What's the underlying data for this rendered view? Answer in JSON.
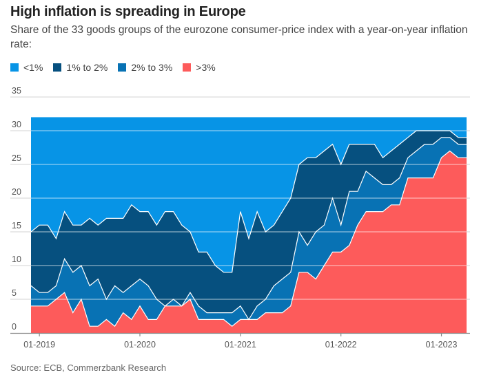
{
  "header": {
    "title": "High inflation is spreading in Europe",
    "subtitle": "Share of the 33 goods groups of the eurozone consumer-price index with a year-on-year inflation rate:"
  },
  "legend": [
    {
      "label": "<1%",
      "color": "#0794e6"
    },
    {
      "label": "1% to 2%",
      "color": "#06507f"
    },
    {
      "label": "2% to 3%",
      "color": "#0872b4"
    },
    {
      "label": ">3%",
      "color": "#fd5b5b"
    }
  ],
  "source": "Source: ECB, Commerzbank Research",
  "chart_data": {
    "type": "area",
    "stacked": true,
    "title": "High inflation is spreading in Europe",
    "subtitle": "Share of the 33 goods groups of the eurozone consumer-price index with a year-on-year inflation rate:",
    "xlabel": "",
    "ylabel": "",
    "x_start": "2018-12",
    "x_end": "2023-04",
    "x_frequency": "monthly",
    "x_ticks": [
      "01-2019",
      "01-2020",
      "01-2021",
      "01-2022",
      "01-2023"
    ],
    "x_tick_index": [
      1,
      13,
      25,
      37,
      49
    ],
    "y_ticks": [
      0,
      5,
      10,
      15,
      20,
      25,
      30,
      35
    ],
    "ylim": [
      0,
      35
    ],
    "grid": true,
    "legend_position": "top-left",
    "series": [
      {
        "name": ">3%",
        "color": "#fd5b5b",
        "values": [
          4,
          4,
          4,
          5,
          6,
          3,
          5,
          1,
          1,
          2,
          1,
          3,
          2,
          4,
          2,
          2,
          4,
          4,
          4,
          5,
          2,
          2,
          2,
          2,
          1,
          2,
          2,
          2,
          3,
          3,
          3,
          4,
          9,
          9,
          8,
          10,
          12,
          12,
          13,
          16,
          18,
          18,
          18,
          19,
          19,
          23,
          23,
          23,
          23,
          26,
          27,
          26,
          26
        ]
      },
      {
        "name": "2% to 3%",
        "color": "#0872b4",
        "values": [
          3,
          2,
          2,
          2,
          5,
          6,
          5,
          6,
          7,
          3,
          6,
          3,
          5,
          4,
          5,
          3,
          0,
          1,
          0,
          1,
          2,
          1,
          1,
          1,
          2,
          2,
          0,
          2,
          2,
          4,
          5,
          5,
          6,
          4,
          7,
          6,
          8,
          4,
          8,
          5,
          6,
          5,
          4,
          3,
          4,
          3,
          4,
          5,
          5,
          3,
          2,
          2,
          2
        ]
      },
      {
        "name": "1% to 2%",
        "color": "#06507f",
        "values": [
          8,
          10,
          10,
          7,
          7,
          7,
          6,
          10,
          8,
          12,
          10,
          11,
          12,
          10,
          11,
          11,
          14,
          13,
          12,
          9,
          8,
          9,
          7,
          6,
          6,
          14,
          12,
          14,
          10,
          9,
          10,
          11,
          10,
          13,
          11,
          11,
          8,
          9,
          7,
          7,
          4,
          5,
          4,
          5,
          5,
          3,
          3,
          2,
          2,
          1,
          1,
          1,
          1
        ]
      },
      {
        "name": "<1%",
        "color": "#0794e6",
        "values": [
          17,
          16,
          16,
          18,
          14,
          16,
          16,
          15,
          16,
          15,
          15,
          15,
          13,
          14,
          14,
          16,
          14,
          14,
          16,
          17,
          20,
          20,
          22,
          23,
          23,
          14,
          18,
          14,
          17,
          16,
          14,
          12,
          7,
          6,
          6,
          5,
          4,
          7,
          4,
          4,
          4,
          4,
          6,
          5,
          4,
          3,
          2,
          2,
          2,
          2,
          2,
          3,
          3
        ]
      }
    ]
  }
}
